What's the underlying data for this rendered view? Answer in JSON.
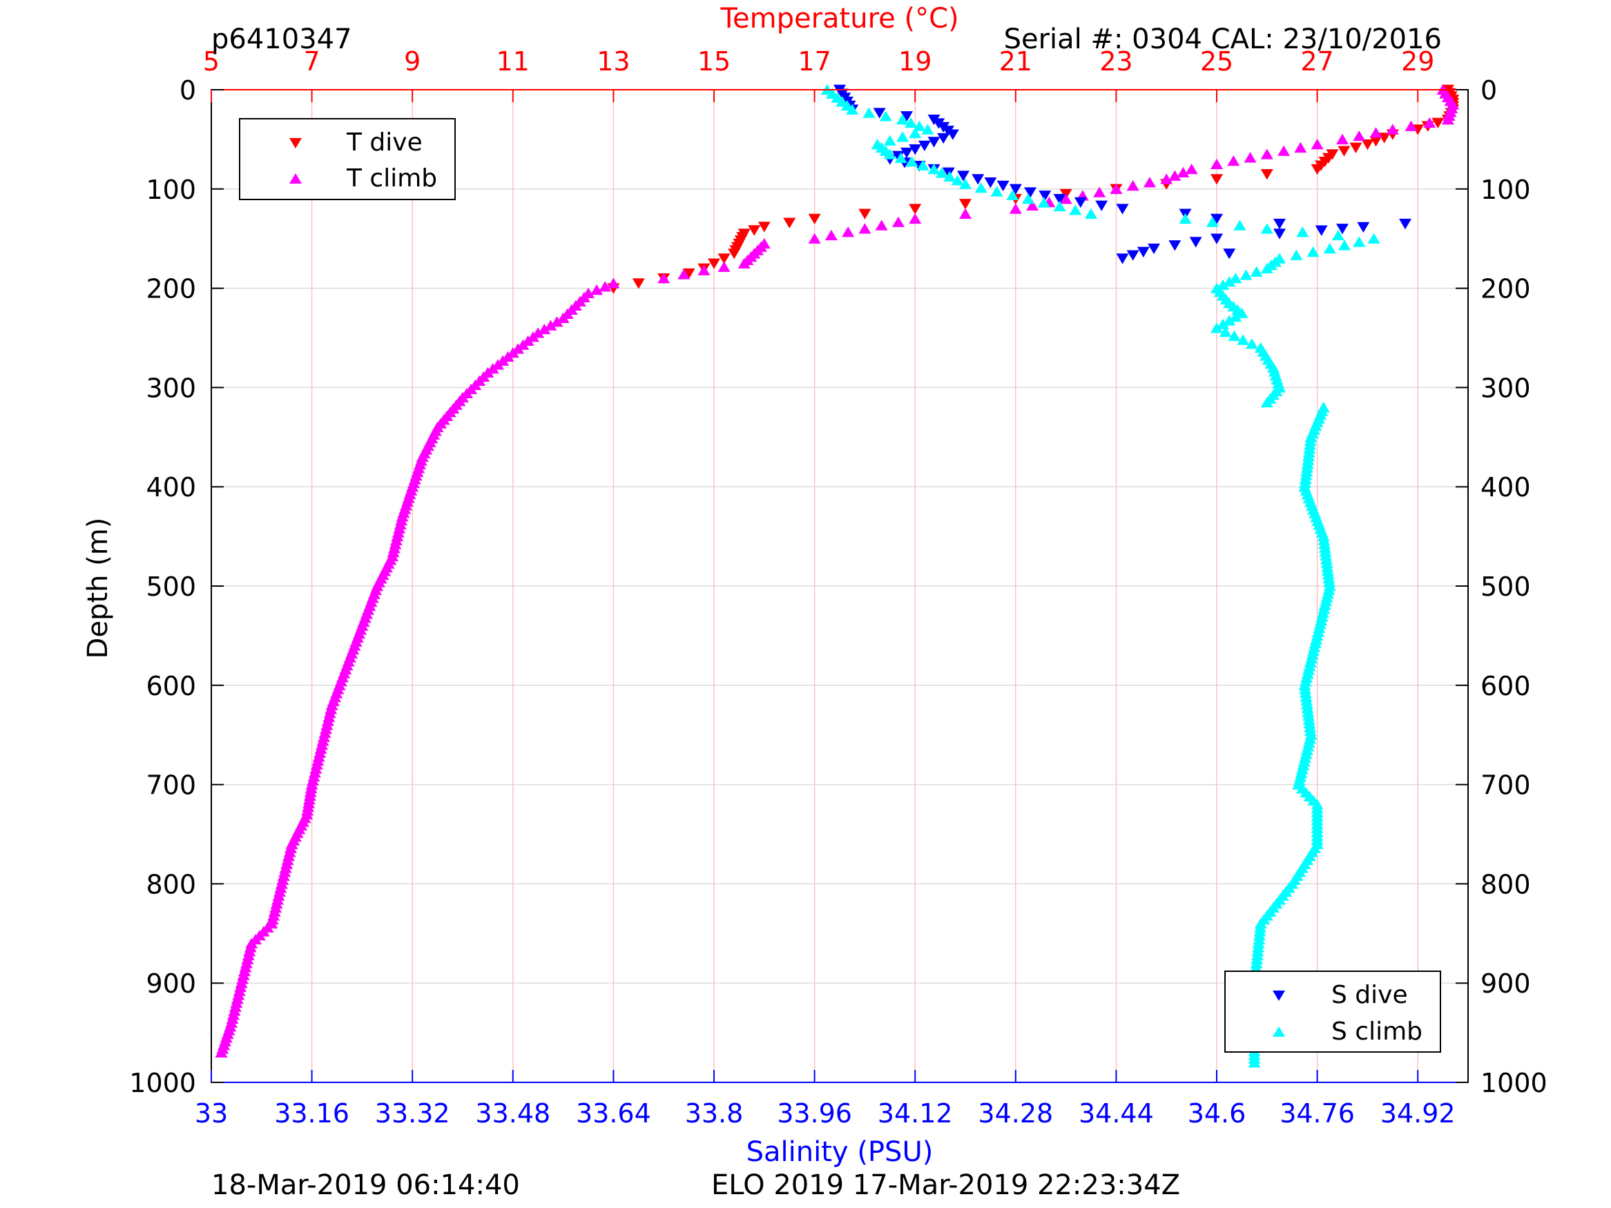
{
  "header": {
    "left_label": "p6410347",
    "right_label": "Serial #: 0304  CAL: 23/10/2016"
  },
  "footer": {
    "left": "18-Mar-2019 06:14:40",
    "right": "ELO 2019 17-Mar-2019 22:23:34Z"
  },
  "colors": {
    "t_dive": "#ff0000",
    "t_climb": "#ff00ff",
    "s_dive": "#0000ff",
    "s_climb": "#00ffff",
    "temp_axis": "#ff0000",
    "sal_axis": "#0000ff",
    "grid_temp": "#ffc0c0",
    "grid_depth": "#dcdcdc"
  },
  "chart_data": {
    "type": "scatter",
    "title": "",
    "ylabel": "Depth (m)",
    "ylim": [
      0,
      1000
    ],
    "y_reversed": true,
    "y_ticks": [
      0,
      100,
      200,
      300,
      400,
      500,
      600,
      700,
      800,
      900,
      1000
    ],
    "temperature_axis": {
      "label": "Temperature (°C)",
      "position": "top",
      "lim": [
        5,
        30
      ],
      "ticks": [
        5,
        7,
        9,
        11,
        13,
        15,
        17,
        19,
        21,
        23,
        25,
        27,
        29
      ]
    },
    "salinity_axis": {
      "label": "Salinity (PSU)",
      "position": "bottom",
      "lim": [
        33,
        35
      ],
      "ticks": [
        "33",
        "33.16",
        "33.32",
        "33.48",
        "33.64",
        "33.8",
        "33.96",
        "34.12",
        "34.28",
        "34.44",
        "34.6",
        "34.76",
        "34.92"
      ]
    },
    "legends": [
      {
        "placement": "top-left",
        "entries": [
          "T dive",
          "T climb"
        ]
      },
      {
        "placement": "bottom-right",
        "entries": [
          "S dive",
          "S climb"
        ]
      }
    ],
    "series": [
      {
        "name": "T dive",
        "axis": "temperature",
        "marker": "triangle-down",
        "points": [
          [
            29.6,
            0
          ],
          [
            29.7,
            10
          ],
          [
            29.7,
            20
          ],
          [
            29.6,
            30
          ],
          [
            29.0,
            40
          ],
          [
            28.5,
            45
          ],
          [
            28.0,
            55
          ],
          [
            27.3,
            65
          ],
          [
            27.0,
            80
          ],
          [
            26.0,
            85
          ],
          [
            25.0,
            90
          ],
          [
            24.0,
            95
          ],
          [
            23.0,
            100
          ],
          [
            22.0,
            105
          ],
          [
            21.0,
            110
          ],
          [
            20.0,
            115
          ],
          [
            19.0,
            120
          ],
          [
            18.0,
            125
          ],
          [
            17.0,
            130
          ],
          [
            16.0,
            138
          ],
          [
            15.6,
            145
          ],
          [
            15.5,
            155
          ],
          [
            15.4,
            165
          ],
          [
            15.2,
            170
          ],
          [
            15.0,
            175
          ],
          [
            14.8,
            180
          ],
          [
            14.5,
            185
          ],
          [
            14.0,
            190
          ],
          [
            13.5,
            195
          ],
          [
            13.0,
            200
          ]
        ]
      },
      {
        "name": "T climb",
        "axis": "temperature",
        "marker": "triangle-up",
        "points": [
          [
            29.5,
            0
          ],
          [
            29.7,
            15
          ],
          [
            29.6,
            30
          ],
          [
            28.5,
            40
          ],
          [
            27.5,
            50
          ],
          [
            27.0,
            55
          ],
          [
            26.0,
            65
          ],
          [
            25.0,
            75
          ],
          [
            24.5,
            80
          ],
          [
            24.0,
            90
          ],
          [
            23.0,
            100
          ],
          [
            22.0,
            110
          ],
          [
            21.0,
            120
          ],
          [
            20.0,
            125
          ],
          [
            19.0,
            130
          ],
          [
            18.0,
            140
          ],
          [
            17.0,
            150
          ],
          [
            16.0,
            155
          ],
          [
            15.8,
            165
          ],
          [
            15.6,
            175
          ],
          [
            14.8,
            182
          ],
          [
            14.0,
            190
          ],
          [
            13.0,
            195
          ],
          [
            12.5,
            205
          ],
          [
            12.0,
            230
          ],
          [
            11.5,
            245
          ],
          [
            11.0,
            265
          ],
          [
            10.5,
            285
          ],
          [
            10.0,
            310
          ],
          [
            9.5,
            340
          ],
          [
            9.2,
            370
          ],
          [
            9.0,
            400
          ],
          [
            8.8,
            430
          ],
          [
            8.6,
            470
          ],
          [
            8.3,
            500
          ],
          [
            8.0,
            540
          ],
          [
            7.7,
            580
          ],
          [
            7.4,
            620
          ],
          [
            7.2,
            660
          ],
          [
            7.0,
            700
          ],
          [
            6.9,
            730
          ],
          [
            6.6,
            760
          ],
          [
            6.4,
            800
          ],
          [
            6.2,
            840
          ],
          [
            5.8,
            860
          ],
          [
            5.6,
            900
          ],
          [
            5.4,
            940
          ],
          [
            5.2,
            970
          ]
        ]
      },
      {
        "name": "S dive",
        "axis": "salinity",
        "marker": "triangle-down",
        "points": [
          [
            34.0,
            0
          ],
          [
            34.02,
            20
          ],
          [
            34.15,
            30
          ],
          [
            34.18,
            45
          ],
          [
            34.12,
            60
          ],
          [
            34.08,
            70
          ],
          [
            34.15,
            80
          ],
          [
            34.22,
            90
          ],
          [
            34.28,
            100
          ],
          [
            34.35,
            110
          ],
          [
            34.45,
            120
          ],
          [
            34.55,
            125
          ],
          [
            34.6,
            130
          ],
          [
            34.7,
            135
          ],
          [
            34.8,
            140
          ],
          [
            34.9,
            135
          ],
          [
            34.7,
            145
          ],
          [
            34.6,
            150
          ],
          [
            34.5,
            160
          ],
          [
            34.45,
            170
          ],
          [
            34.62,
            165
          ]
        ]
      },
      {
        "name": "S climb",
        "axis": "salinity",
        "marker": "triangle-up",
        "points": [
          [
            33.98,
            0
          ],
          [
            34.02,
            20
          ],
          [
            34.1,
            30
          ],
          [
            34.14,
            40
          ],
          [
            34.06,
            55
          ],
          [
            34.08,
            65
          ],
          [
            34.15,
            80
          ],
          [
            34.2,
            95
          ],
          [
            34.3,
            110
          ],
          [
            34.4,
            125
          ],
          [
            34.55,
            130
          ],
          [
            34.68,
            140
          ],
          [
            34.85,
            150
          ],
          [
            34.78,
            160
          ],
          [
            34.7,
            170
          ],
          [
            34.68,
            180
          ],
          [
            34.63,
            190
          ],
          [
            34.6,
            200
          ],
          [
            34.62,
            215
          ],
          [
            34.64,
            225
          ],
          [
            34.6,
            240
          ],
          [
            34.67,
            260
          ],
          [
            34.69,
            280
          ],
          [
            34.7,
            300
          ],
          [
            34.68,
            315
          ],
          [
            34.77,
            320
          ],
          [
            34.75,
            350
          ],
          [
            34.74,
            400
          ],
          [
            34.77,
            450
          ],
          [
            34.78,
            500
          ],
          [
            34.76,
            550
          ],
          [
            34.74,
            600
          ],
          [
            34.75,
            650
          ],
          [
            34.73,
            700
          ],
          [
            34.76,
            720
          ],
          [
            34.76,
            760
          ],
          [
            34.72,
            800
          ],
          [
            34.67,
            840
          ],
          [
            34.66,
            900
          ],
          [
            34.66,
            950
          ],
          [
            34.66,
            980
          ]
        ]
      }
    ]
  }
}
